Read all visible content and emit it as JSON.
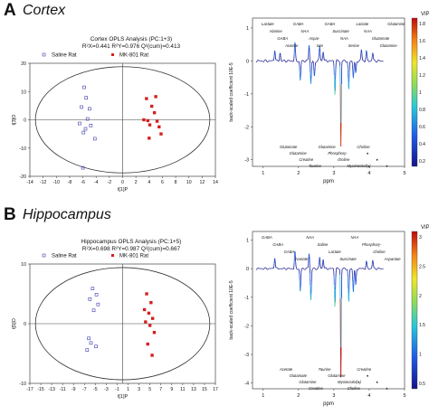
{
  "panels": [
    {
      "letter": "A",
      "title": "Cortex",
      "score": {
        "title": "Cortex OPLS Analysis (PC:1+3)",
        "stats": "R²X=0.441 R²Y=0.976 Q²(cum)=0.413",
        "legend": [
          "Saline Rat",
          "MK-801 Rat"
        ],
        "xlabel": "t[1]P",
        "ylabel": "t[3]O",
        "xticks": [
          "-14",
          "-12",
          "-10",
          "-8",
          "-6",
          "-4",
          "-2",
          "0",
          "2",
          "4",
          "6",
          "8",
          "10",
          "12",
          "14"
        ],
        "yticks": [
          "20",
          "10",
          "0",
          "-10",
          "-20"
        ]
      },
      "loadings": {
        "ylabel": "back-scaled coefficient 10E-5",
        "xlabel": "ppm",
        "xticks": [
          "1",
          "2",
          "3",
          "4",
          "5"
        ],
        "yticks": [
          "1",
          "0",
          "-1",
          "-2",
          "-3"
        ],
        "colorbar_title": "VIP",
        "colorbar_ticks": [
          "1.8",
          "1.6",
          "1.4",
          "1.2",
          "1",
          "0.8",
          "0.6",
          "0.4",
          "0.2"
        ],
        "labels_top": [
          "Lactate",
          "Alanine",
          "GABA",
          "Acetate",
          "GABA",
          "NAA",
          "Aspar-",
          "tate",
          "GABA",
          "Succinate",
          "NAA",
          "Serine",
          "Lactate",
          "NAA",
          "Glutamate",
          "Glutamine",
          "Glutamine"
        ],
        "labels_bottom": [
          "Glutamate",
          "Glutamine",
          "Creatine",
          "Taurine",
          "Glutamine",
          "Phosphory-",
          "choline",
          "Myoinositol(♦)",
          "Choline",
          "♦",
          "♦",
          "♦"
        ]
      }
    },
    {
      "letter": "B",
      "title": "Hippocampus",
      "score": {
        "title": "Hippocampus OPLS Analysis (PC:1+5)",
        "stats": "R²X=0.698 R²Y=0.987 Q²(cum)=0.667",
        "legend": [
          "Saline Rat",
          "MK-801 Rat"
        ],
        "xlabel": "t[1]P",
        "ylabel": "t[5]O",
        "xticks": [
          "-17",
          "-15",
          "-13",
          "-11",
          "-9",
          "-7",
          "-5",
          "-3",
          "-1",
          "1",
          "3",
          "5",
          "7",
          "9",
          "11",
          "13",
          "15",
          "17"
        ],
        "yticks": [
          "10",
          "0",
          "-10"
        ]
      },
      "loadings": {
        "ylabel": "back-scaled coefficient 10E-5",
        "xlabel": "ppm",
        "xticks": [
          "1",
          "2",
          "3",
          "4",
          "5"
        ],
        "yticks": [
          "1",
          "0",
          "-1",
          "-2",
          "-3",
          "-4"
        ],
        "colorbar_title": "VIP",
        "colorbar_ticks": [
          "3",
          "2.5",
          "2",
          "1.5",
          "1",
          "0.5"
        ],
        "labels_top": [
          "GABA",
          "GABA",
          "GABA",
          "Acetate",
          "NAA",
          "Saline",
          "Lactate",
          "Succinate",
          "NAA",
          "Phosphory-",
          "choline",
          "Aspartate"
        ],
        "labels_bottom": [
          "Acetate",
          "Glutamate",
          "Glutamine",
          "Creatine",
          "Taurine",
          "Glutamine",
          "Myoinositol(♦)",
          "Choline",
          "Creatine",
          "♦",
          "♦",
          "♦"
        ]
      }
    }
  ],
  "chart_data": [
    {
      "type": "scatter",
      "title": "Cortex OPLS Analysis (PC:1+3)",
      "xlabel": "t[1]P",
      "ylabel": "t[3]O",
      "xlim": [
        -14,
        14
      ],
      "ylim": [
        -20,
        20
      ],
      "series": [
        {
          "name": "Saline Rat",
          "color": "#3a3ab0",
          "marker": "open-square",
          "x": [
            -5.8,
            -5.5,
            -6.2,
            -5.0,
            -5.3,
            -6.5,
            -4.8,
            -5.6,
            -5.9,
            -4.2,
            -6.0
          ],
          "y": [
            11.5,
            7.8,
            4.5,
            3.9,
            0.3,
            -1.3,
            -2.0,
            -3.2,
            -4.5,
            -6.7,
            -17.0
          ]
        },
        {
          "name": "MK-801 Rat",
          "color": "#d42020",
          "marker": "filled-square",
          "x": [
            3.6,
            5.0,
            4.4,
            4.8,
            3.2,
            3.8,
            5.2,
            4.1,
            5.5,
            5.8,
            4.0
          ],
          "y": [
            7.5,
            8.2,
            4.8,
            2.5,
            0.0,
            -0.3,
            -0.5,
            -1.8,
            -2.5,
            -5.0,
            -6.5
          ]
        }
      ]
    },
    {
      "type": "scatter",
      "title": "Hippocampus OPLS Analysis (PC:1+5)",
      "xlabel": "t[1]P",
      "ylabel": "t[5]O",
      "xlim": [
        -17,
        17
      ],
      "ylim": [
        -17,
        17
      ],
      "series": [
        {
          "name": "Saline Rat",
          "color": "#3a3ab0",
          "marker": "open-square",
          "x": [
            -5.5,
            -4.8,
            -6.0,
            -4.5,
            -5.3,
            -6.2,
            -5.8,
            -4.9,
            -6.5
          ],
          "y": [
            10.0,
            8.3,
            7.0,
            5.5,
            3.8,
            -4.2,
            -5.5,
            -6.5,
            -7.5
          ]
        },
        {
          "name": "MK-801 Rat",
          "color": "#d42020",
          "marker": "filled-square",
          "x": [
            4.4,
            5.2,
            4.0,
            4.8,
            5.5,
            4.2,
            5.0,
            5.8,
            4.6,
            5.4
          ],
          "y": [
            8.5,
            6.0,
            4.0,
            3.0,
            1.5,
            0.5,
            -0.5,
            -2.5,
            -5.8,
            -9.0
          ]
        }
      ]
    }
  ]
}
